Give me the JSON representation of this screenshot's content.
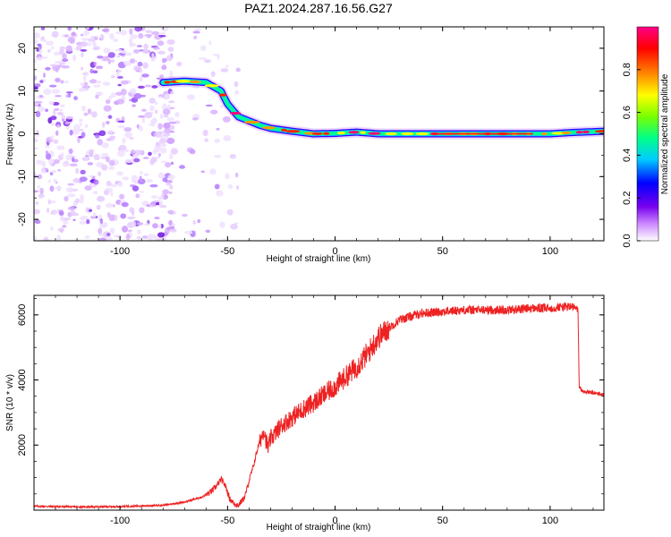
{
  "title": "PAZ1.2024.287.16.56.G27",
  "chart_data": [
    {
      "type": "heatmap",
      "title": "PAZ1.2024.287.16.56.G27",
      "xlabel": "Height of straight line (km)",
      "ylabel": "Frequency (Hz)",
      "xlim": [
        -140,
        125
      ],
      "ylim": [
        -25,
        25
      ],
      "x_ticks": [
        -100,
        -50,
        0,
        50,
        100
      ],
      "y_ticks": [
        -20,
        -10,
        0,
        10,
        20
      ],
      "ridge": {
        "x": [
          -80,
          -70,
          -60,
          -53,
          -50,
          -45,
          -40,
          -35,
          -30,
          -20,
          -10,
          0,
          10,
          20,
          40,
          60,
          80,
          100,
          110,
          125
        ],
        "y": [
          12,
          12.3,
          12,
          10,
          7,
          4,
          3,
          2,
          1.3,
          0.6,
          0,
          0.1,
          0.4,
          0,
          0,
          0,
          0,
          0,
          0.3,
          0.6
        ]
      },
      "noise_region": {
        "x_range": [
          -140,
          -75
        ],
        "freq_range": [
          -25,
          25
        ]
      },
      "grid": false,
      "colorbar": {
        "label": "Normalized spectral amplitude",
        "range": [
          0,
          1
        ],
        "ticks": [
          "0.0",
          "0.2",
          "0.4",
          "0.6",
          "0.8"
        ],
        "colormap": [
          "#ffffff",
          "#cc88ff",
          "#7700ee",
          "#0000ff",
          "#00ccff",
          "#00ff88",
          "#77ff00",
          "#ffff00",
          "#ff8800",
          "#ff0000",
          "#ff0088"
        ]
      }
    },
    {
      "type": "line",
      "xlabel": "Height of straight line (km)",
      "ylabel": "SNR (10 * v/v)",
      "xlim": [
        -140,
        125
      ],
      "ylim": [
        0,
        6600
      ],
      "x_ticks": [
        -100,
        -50,
        0,
        50,
        100
      ],
      "y_ticks": [
        2000,
        4000,
        6000
      ],
      "grid": false,
      "color": "#ee2222",
      "series": [
        {
          "x": [
            -140,
            -120,
            -100,
            -80,
            -70,
            -62,
            -58,
            -55,
            -53,
            -51,
            -49,
            -47,
            -45,
            -42,
            -40,
            -38,
            -36,
            -34,
            -33,
            -32,
            -31,
            -30,
            -28,
            -25,
            -20,
            -15,
            -10,
            -5,
            0,
            5,
            10,
            15,
            20,
            25,
            30,
            35,
            40,
            50,
            60,
            70,
            80,
            90,
            100,
            105,
            110,
            112,
            113,
            113.5,
            115,
            120,
            125
          ],
          "y": [
            120,
            100,
            110,
            150,
            250,
            400,
            550,
            750,
            950,
            750,
            350,
            200,
            150,
            400,
            900,
            1350,
            1900,
            2300,
            2500,
            2100,
            1900,
            2200,
            2350,
            2600,
            2850,
            3100,
            3300,
            3550,
            3800,
            4100,
            4400,
            4800,
            5300,
            5600,
            5850,
            5950,
            6050,
            6100,
            6150,
            6150,
            6150,
            6200,
            6200,
            6250,
            6250,
            6200,
            6100,
            3800,
            3650,
            3600,
            3550
          ]
        }
      ]
    }
  ]
}
